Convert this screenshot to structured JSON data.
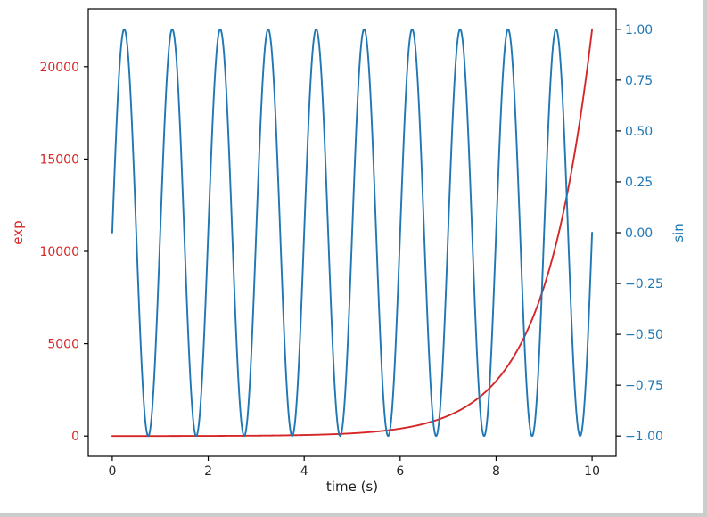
{
  "window": {
    "background": "#ffffff",
    "edge_color": "#cccccc"
  },
  "chart_data": {
    "type": "line",
    "title": "",
    "xlabel": "time (s)",
    "xlim": [
      -0.5,
      10.5
    ],
    "grid": false,
    "legend": null,
    "line_width": 1.9,
    "frame_color": "#000000",
    "tick_color": "#000000",
    "text_color": "#262626",
    "x_ticks": {
      "values": [
        0,
        2,
        4,
        6,
        8,
        10
      ],
      "labels": [
        "0",
        "2",
        "4",
        "6",
        "8",
        "10"
      ]
    },
    "axes": {
      "left": {
        "label": "exp",
        "color": "#d62728",
        "ylim": [
          -1100.3,
          23127.7
        ],
        "tick_values": [
          0,
          5000,
          10000,
          15000,
          20000
        ],
        "tick_labels": [
          "0",
          "5000",
          "10000",
          "15000",
          "20000"
        ]
      },
      "right": {
        "label": "sin",
        "color": "#1f77b4",
        "ylim": [
          -1.1,
          1.1
        ],
        "tick_values": [
          1.0,
          0.75,
          0.5,
          0.25,
          0.0,
          -0.25,
          -0.5,
          -0.75,
          -1.0
        ],
        "tick_labels": [
          "1.00",
          "0.75",
          "0.50",
          "0.25",
          "0.00",
          "−0.25",
          "−0.50",
          "−0.75",
          "−1.00"
        ]
      }
    },
    "series": [
      {
        "name": "exp",
        "axis": "left",
        "color": "#d62728",
        "formula": "exp(t)",
        "generator": {
          "kind": "exp"
        },
        "t_range": [
          0,
          10
        ],
        "samples": {
          "t": [
            0,
            1,
            2,
            3,
            4,
            5,
            6,
            7,
            8,
            9,
            10
          ],
          "y": [
            1,
            2.718,
            7.389,
            20.086,
            54.598,
            148.413,
            403.429,
            1096.633,
            2980.958,
            8103.084,
            22026.466
          ]
        }
      },
      {
        "name": "sin",
        "axis": "right",
        "color": "#1f77b4",
        "formula": "sin(2*pi*t)",
        "generator": {
          "kind": "sin",
          "frequency_hz": 1,
          "amplitude": 1
        },
        "t_range": [
          0,
          10
        ],
        "period_s": 1,
        "samples": {
          "t": [
            0,
            0.25,
            0.5,
            0.75,
            1
          ],
          "y": [
            0,
            1,
            0,
            -1,
            0
          ]
        }
      }
    ]
  }
}
